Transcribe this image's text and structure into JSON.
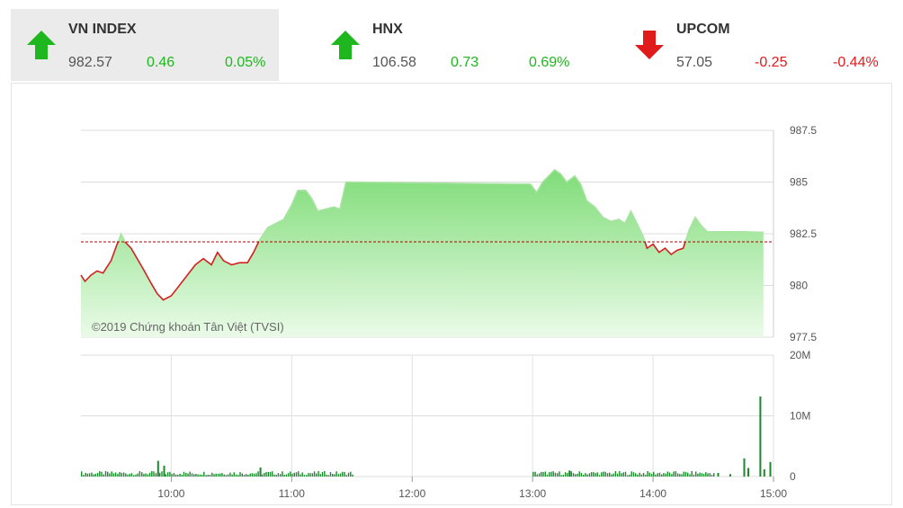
{
  "indices": [
    {
      "name": "VN INDEX",
      "value": "982.57",
      "change": "0.46",
      "percent": "0.05%",
      "direction": "up",
      "active": true
    },
    {
      "name": "HNX",
      "value": "106.58",
      "change": "0.73",
      "percent": "0.69%",
      "direction": "up",
      "active": false
    },
    {
      "name": "UPCOM",
      "value": "57.05",
      "change": "-0.25",
      "percent": "-0.44%",
      "direction": "down",
      "active": false
    }
  ],
  "colors": {
    "up": "#1fb71f",
    "down": "#e01b1b",
    "area": "#8fe28a",
    "reference": "#b00000",
    "volume": "#1b8a2b"
  },
  "watermark": "©2019 Chứng khoán Tân Việt (TVSI)",
  "chart_data": [
    {
      "type": "area",
      "reference": 982.11,
      "ylim": [
        977.5,
        987.5
      ],
      "y_ticks": [
        "987.5",
        "985",
        "982.5",
        "980",
        "977.5"
      ],
      "x_ticks": [
        "10:00",
        "11:00",
        "12:00",
        "13:00",
        "14:00",
        "15:00"
      ],
      "xlim": [
        "09:15",
        "15:00"
      ],
      "grid": true,
      "points": [
        [
          "09:15",
          980.5
        ],
        [
          "09:17",
          980.2
        ],
        [
          "09:20",
          980.5
        ],
        [
          "09:23",
          980.7
        ],
        [
          "09:26",
          980.6
        ],
        [
          "09:30",
          981.2
        ],
        [
          "09:33",
          982.0
        ],
        [
          "09:35",
          982.5
        ],
        [
          "09:37",
          982.1
        ],
        [
          "09:40",
          981.8
        ],
        [
          "09:43",
          981.3
        ],
        [
          "09:46",
          980.8
        ],
        [
          "09:50",
          980.1
        ],
        [
          "09:53",
          979.6
        ],
        [
          "09:56",
          979.3
        ],
        [
          "10:00",
          979.5
        ],
        [
          "10:04",
          980.0
        ],
        [
          "10:08",
          980.5
        ],
        [
          "10:12",
          981.0
        ],
        [
          "10:16",
          981.3
        ],
        [
          "10:20",
          981.0
        ],
        [
          "10:23",
          981.6
        ],
        [
          "10:26",
          981.2
        ],
        [
          "10:30",
          981.0
        ],
        [
          "10:34",
          981.1
        ],
        [
          "10:38",
          981.1
        ],
        [
          "10:41",
          981.6
        ],
        [
          "10:44",
          982.2
        ],
        [
          "10:48",
          982.8
        ],
        [
          "10:52",
          983.0
        ],
        [
          "10:56",
          983.2
        ],
        [
          "11:00",
          983.9
        ],
        [
          "11:03",
          984.6
        ],
        [
          "11:07",
          984.6
        ],
        [
          "11:10",
          984.2
        ],
        [
          "11:13",
          983.6
        ],
        [
          "11:17",
          983.7
        ],
        [
          "11:21",
          983.8
        ],
        [
          "11:24",
          983.7
        ],
        [
          "11:27",
          985.0
        ],
        [
          "11:30",
          985.0
        ],
        [
          "12:59",
          984.9
        ],
        [
          "13:02",
          984.5
        ],
        [
          "13:05",
          985.0
        ],
        [
          "13:08",
          985.3
        ],
        [
          "13:11",
          985.6
        ],
        [
          "13:14",
          985.4
        ],
        [
          "13:17",
          985.0
        ],
        [
          "13:21",
          985.3
        ],
        [
          "13:24",
          984.9
        ],
        [
          "13:27",
          984.1
        ],
        [
          "13:31",
          983.8
        ],
        [
          "13:35",
          983.3
        ],
        [
          "13:39",
          983.1
        ],
        [
          "13:43",
          983.2
        ],
        [
          "13:46",
          983.0
        ],
        [
          "13:49",
          983.6
        ],
        [
          "13:52",
          983.0
        ],
        [
          "13:55",
          982.4
        ],
        [
          "13:57",
          981.8
        ],
        [
          "14:00",
          982.0
        ],
        [
          "14:03",
          981.6
        ],
        [
          "14:06",
          981.8
        ],
        [
          "14:09",
          981.5
        ],
        [
          "14:12",
          981.7
        ],
        [
          "14:15",
          981.8
        ],
        [
          "14:18",
          982.7
        ],
        [
          "14:21",
          983.3
        ],
        [
          "14:24",
          982.9
        ],
        [
          "14:27",
          982.6
        ],
        [
          "14:30",
          982.6
        ],
        [
          "14:45",
          982.6
        ],
        [
          "14:55",
          982.57
        ]
      ]
    },
    {
      "type": "bar",
      "ylim": [
        0,
        20
      ],
      "y_ticks": [
        "20M",
        "10M",
        "0"
      ],
      "x_ticks": [
        "10:00",
        "11:00",
        "12:00",
        "13:00",
        "14:00",
        "15:00"
      ],
      "sessions": [
        [
          "09:15",
          "11:30"
        ],
        [
          "13:00",
          "14:30"
        ]
      ],
      "base_volume_m": 0.6,
      "spikes": [
        [
          "09:53",
          2.6
        ],
        [
          "09:56",
          1.8
        ],
        [
          "10:44",
          1.5
        ],
        [
          "13:18",
          1.0
        ],
        [
          "14:32",
          0.6
        ],
        [
          "14:38",
          0.4
        ],
        [
          "14:45",
          3.0
        ],
        [
          "14:47",
          1.4
        ],
        [
          "14:53",
          13.2
        ],
        [
          "14:55",
          1.2
        ],
        [
          "14:58",
          2.4
        ]
      ]
    }
  ]
}
